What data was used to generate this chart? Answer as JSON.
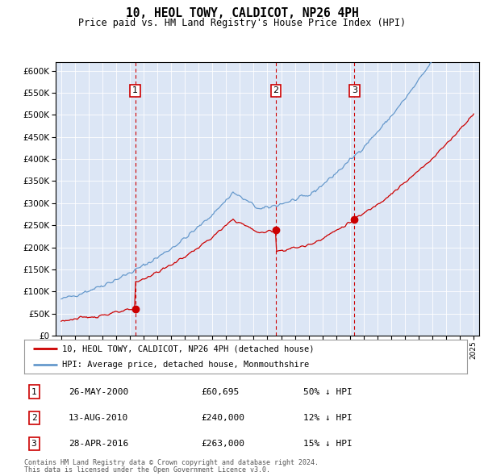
{
  "title": "10, HEOL TOWY, CALDICOT, NP26 4PH",
  "subtitle": "Price paid vs. HM Land Registry's House Price Index (HPI)",
  "legend_line1": "10, HEOL TOWY, CALDICOT, NP26 4PH (detached house)",
  "legend_line2": "HPI: Average price, detached house, Monmouthshire",
  "footnote1": "Contains HM Land Registry data © Crown copyright and database right 2024.",
  "footnote2": "This data is licensed under the Open Government Licence v3.0.",
  "sale_color": "#cc0000",
  "hpi_color": "#6699cc",
  "background_color": "#dce6f5",
  "ylim": [
    0,
    620000
  ],
  "yticks": [
    0,
    50000,
    100000,
    150000,
    200000,
    250000,
    300000,
    350000,
    400000,
    450000,
    500000,
    550000,
    600000
  ],
  "sales": [
    {
      "date_num": 2000.38,
      "price": 60695,
      "label": "1"
    },
    {
      "date_num": 2010.62,
      "price": 240000,
      "label": "2"
    },
    {
      "date_num": 2016.32,
      "price": 263000,
      "label": "3"
    }
  ],
  "sale_table": [
    {
      "num": "1",
      "date": "26-MAY-2000",
      "price": "£60,695",
      "note": "50% ↓ HPI"
    },
    {
      "num": "2",
      "date": "13-AUG-2010",
      "price": "£240,000",
      "note": "12% ↓ HPI"
    },
    {
      "num": "3",
      "date": "28-APR-2016",
      "price": "£263,000",
      "note": "15% ↓ HPI"
    }
  ]
}
